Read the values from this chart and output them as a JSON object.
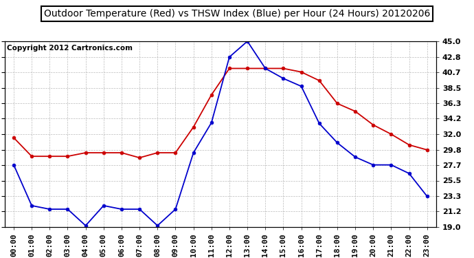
{
  "title": "Outdoor Temperature (Red) vs THSW Index (Blue) per Hour (24 Hours) 20120206",
  "copyright": "Copyright 2012 Cartronics.com",
  "hours": [
    "00:00",
    "01:00",
    "02:00",
    "03:00",
    "04:00",
    "05:00",
    "06:00",
    "07:00",
    "08:00",
    "09:00",
    "10:00",
    "11:00",
    "12:00",
    "13:00",
    "14:00",
    "15:00",
    "16:00",
    "17:00",
    "18:00",
    "19:00",
    "20:00",
    "21:00",
    "22:00",
    "23:00"
  ],
  "red_data": [
    31.5,
    28.9,
    28.9,
    28.9,
    29.4,
    29.4,
    29.4,
    28.7,
    29.4,
    29.4,
    33.0,
    37.5,
    41.2,
    41.2,
    41.2,
    41.2,
    40.7,
    39.5,
    36.3,
    35.2,
    33.3,
    32.0,
    30.5,
    29.8
  ],
  "blue_data": [
    27.7,
    22.0,
    21.5,
    21.5,
    19.2,
    22.0,
    21.5,
    21.5,
    19.2,
    21.5,
    29.4,
    33.6,
    42.8,
    45.0,
    41.2,
    39.8,
    38.7,
    33.5,
    30.8,
    28.8,
    27.7,
    27.7,
    26.5,
    23.3
  ],
  "ylim": [
    19.0,
    45.0
  ],
  "yticks": [
    19.0,
    21.2,
    23.3,
    25.5,
    27.7,
    29.8,
    32.0,
    34.2,
    36.3,
    38.5,
    40.7,
    42.8,
    45.0
  ],
  "red_color": "#cc0000",
  "blue_color": "#0000cc",
  "bg_color": "#ffffff",
  "grid_color": "#aaaaaa",
  "title_fontsize": 10,
  "copyright_fontsize": 7.5,
  "tick_fontsize": 8
}
